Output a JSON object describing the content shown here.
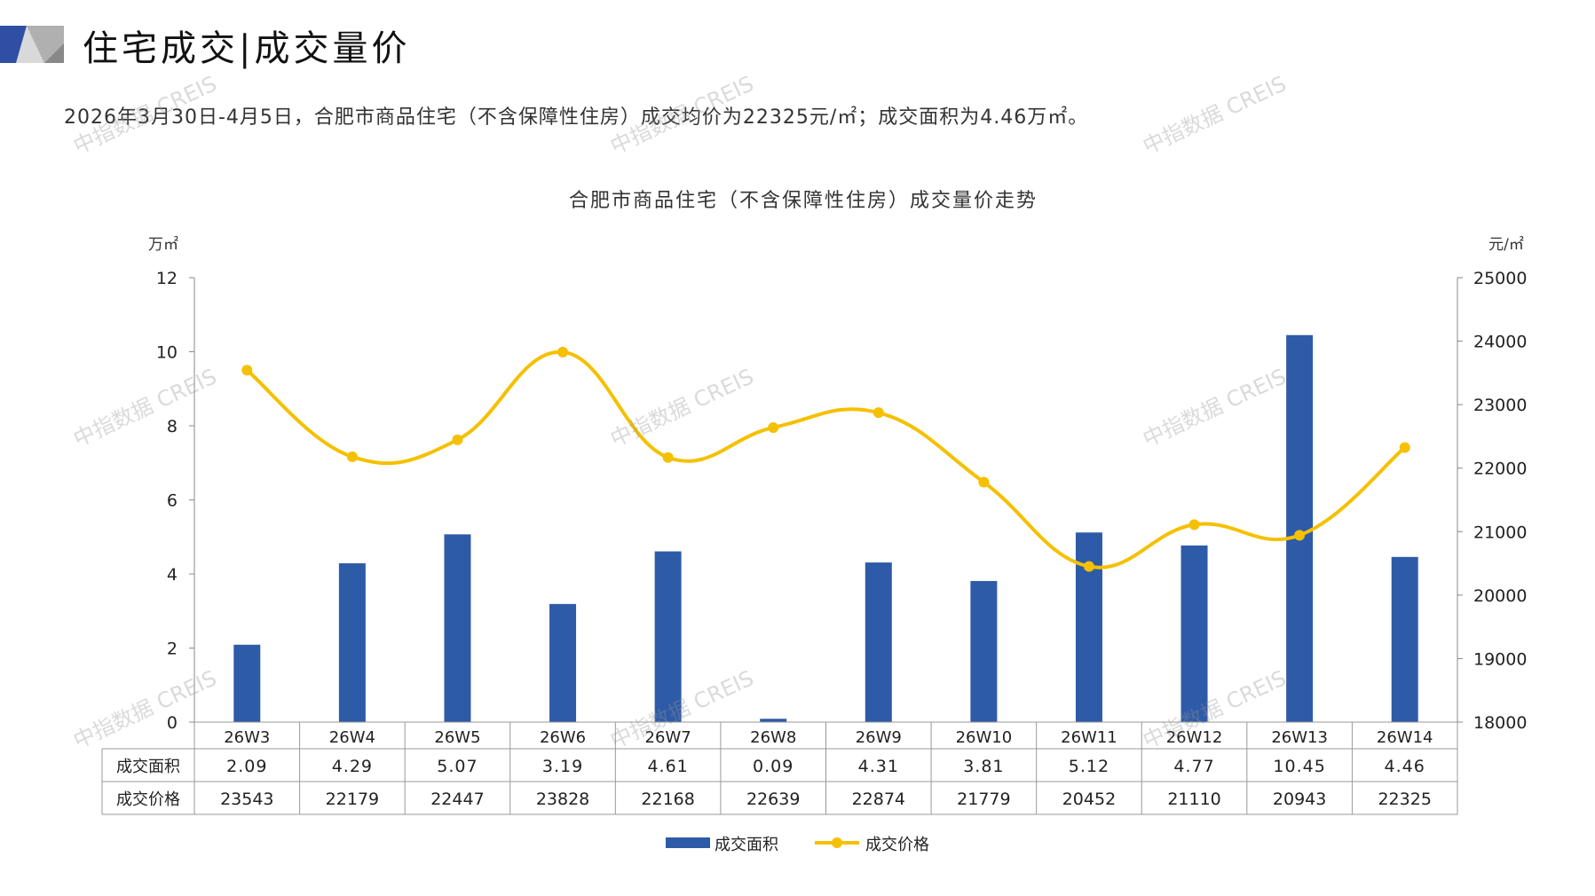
{
  "header": {
    "title": "住宅成交|成交量价",
    "subtitle": "2026年3月30日-4月5日，合肥市商品住宅（不含保障性住房）成交均价为22325元/㎡；成交面积为4.46万㎡。"
  },
  "watermark": "中指数据 CREIS",
  "colors": {
    "bar": "#2E5BA8",
    "line": "#F5C000",
    "axis": "#888888",
    "table_border": "#999999"
  },
  "chart_data": {
    "type": "bar",
    "title": "合肥市商品住宅（不含保障性住房）成交量价走势",
    "categories": [
      "26W3",
      "26W4",
      "26W5",
      "26W6",
      "26W7",
      "26W8",
      "26W9",
      "26W10",
      "26W11",
      "26W12",
      "26W13",
      "26W14"
    ],
    "y_left": {
      "label": "万㎡",
      "range": [
        0,
        12
      ],
      "ticks": [
        "0",
        "2",
        "4",
        "6",
        "8",
        "10",
        "12"
      ]
    },
    "y_right": {
      "label": "元/㎡",
      "range": [
        18000,
        25000
      ],
      "ticks": [
        "18000",
        "19000",
        "20000",
        "21000",
        "22000",
        "23000",
        "24000",
        "25000"
      ]
    },
    "series": [
      {
        "name": "成交面积",
        "type": "bar",
        "axis": "left",
        "values": [
          2.09,
          4.29,
          5.07,
          3.19,
          4.61,
          0.09,
          4.31,
          3.81,
          5.12,
          4.77,
          10.45,
          4.46
        ],
        "labels": [
          "2.09",
          "4.29",
          "5.07",
          "3.19",
          "4.61",
          "0.09",
          "4.31",
          "3.81",
          "5.12",
          "4.77",
          "10.45",
          "4.46"
        ]
      },
      {
        "name": "成交价格",
        "type": "line",
        "smooth": true,
        "axis": "right",
        "values": [
          23543,
          22179,
          22447,
          23828,
          22168,
          22639,
          22874,
          21779,
          20452,
          21110,
          20943,
          22325
        ],
        "labels": [
          "23543",
          "22179",
          "22447",
          "23828",
          "22168",
          "22639",
          "22874",
          "21779",
          "20452",
          "21110",
          "20943",
          "22325"
        ]
      }
    ],
    "legend": "bottom-center",
    "data_table": true
  }
}
